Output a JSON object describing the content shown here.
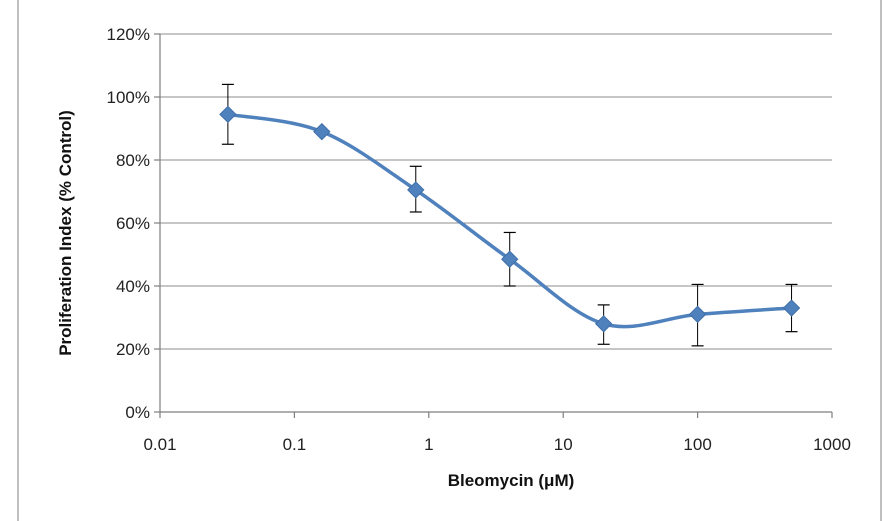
{
  "chart_data": {
    "type": "line",
    "title": "",
    "xlabel": "Bleomycin (μM)",
    "ylabel": "Proliferation Index (% Control)",
    "x_scale": "log",
    "xlim": [
      0.01,
      1000
    ],
    "ylim": [
      0,
      120
    ],
    "x_ticks": [
      {
        "value": 0.01,
        "label": "0.01"
      },
      {
        "value": 0.1,
        "label": "0.1"
      },
      {
        "value": 1,
        "label": "1"
      },
      {
        "value": 10,
        "label": "10"
      },
      {
        "value": 100,
        "label": "100"
      },
      {
        "value": 1000,
        "label": "1000"
      }
    ],
    "y_ticks": [
      {
        "value": 0,
        "label": "0%"
      },
      {
        "value": 20,
        "label": "20%"
      },
      {
        "value": 40,
        "label": "40%"
      },
      {
        "value": 60,
        "label": "60%"
      },
      {
        "value": 80,
        "label": "80%"
      },
      {
        "value": 100,
        "label": "100%"
      },
      {
        "value": 120,
        "label": "120%"
      }
    ],
    "grid": "horizontal",
    "legend": "none",
    "series": [
      {
        "x": [
          0.032,
          0.16,
          0.8,
          4,
          20,
          100,
          500
        ],
        "y": [
          94.5,
          89,
          70.5,
          48.5,
          28,
          31,
          33
        ],
        "y_err_upper": [
          104,
          89.5,
          78,
          57,
          34,
          40.5,
          40.5
        ],
        "y_err_lower": [
          85,
          88.5,
          63.5,
          40,
          21.5,
          21,
          25.5
        ],
        "color": "#4F81BD",
        "marker": "diamond",
        "smooth": true
      }
    ]
  }
}
